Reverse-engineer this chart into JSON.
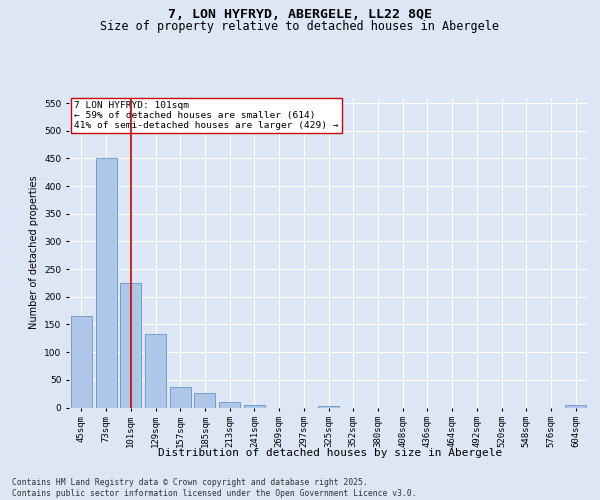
{
  "title": "7, LON HYFRYD, ABERGELE, LL22 8QE",
  "subtitle": "Size of property relative to detached houses in Abergele",
  "xlabel": "Distribution of detached houses by size in Abergele",
  "ylabel": "Number of detached properties",
  "categories": [
    "45sqm",
    "73sqm",
    "101sqm",
    "129sqm",
    "157sqm",
    "185sqm",
    "213sqm",
    "241sqm",
    "269sqm",
    "297sqm",
    "325sqm",
    "352sqm",
    "380sqm",
    "408sqm",
    "436sqm",
    "464sqm",
    "492sqm",
    "520sqm",
    "548sqm",
    "576sqm",
    "604sqm"
  ],
  "values": [
    165,
    450,
    225,
    132,
    37,
    26,
    10,
    5,
    0,
    0,
    3,
    0,
    0,
    0,
    0,
    0,
    0,
    0,
    0,
    0,
    4
  ],
  "bar_color": "#aec6e8",
  "bar_edge_color": "#5588bb",
  "highlight_line_color": "#cc0000",
  "highlight_line_index": 2,
  "annotation_text": "7 LON HYFRYD: 101sqm\n← 59% of detached houses are smaller (614)\n41% of semi-detached houses are larger (429) →",
  "ylim": [
    0,
    560
  ],
  "yticks": [
    0,
    50,
    100,
    150,
    200,
    250,
    300,
    350,
    400,
    450,
    500,
    550
  ],
  "background_color": "#dce6f5",
  "plot_bg_color": "#dce6f5",
  "footer_text": "Contains HM Land Registry data © Crown copyright and database right 2025.\nContains public sector information licensed under the Open Government Licence v3.0.",
  "title_fontsize": 9.5,
  "subtitle_fontsize": 8.5,
  "xlabel_fontsize": 8,
  "ylabel_fontsize": 7,
  "tick_fontsize": 6.5,
  "annotation_fontsize": 6.8,
  "footer_fontsize": 5.8
}
